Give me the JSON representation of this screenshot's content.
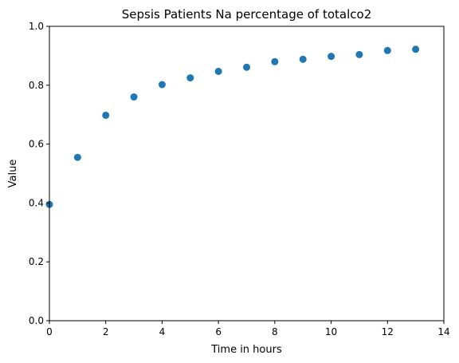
{
  "chart_data": {
    "type": "scatter",
    "title": "Sepsis Patients Na percentage of totalco2",
    "xlabel": "Time in hours",
    "ylabel": "Value",
    "xlim": [
      0,
      14
    ],
    "ylim": [
      0,
      1.0
    ],
    "xticks": [
      0,
      2,
      4,
      6,
      8,
      10,
      12,
      14
    ],
    "yticks": [
      0.0,
      0.2,
      0.4,
      0.6,
      0.8,
      1.0
    ],
    "xtick_labels": [
      "0",
      "2",
      "4",
      "6",
      "8",
      "10",
      "12",
      "14"
    ],
    "ytick_labels": [
      "0.0",
      "0.2",
      "0.4",
      "0.6",
      "0.8",
      "1.0"
    ],
    "grid": false,
    "series": [
      {
        "color": "#1f77b4",
        "x": [
          0,
          1,
          2,
          3,
          4,
          5,
          6,
          7,
          8,
          9,
          10,
          11,
          12,
          13
        ],
        "y": [
          0.395,
          0.555,
          0.698,
          0.76,
          0.802,
          0.825,
          0.847,
          0.861,
          0.88,
          0.888,
          0.898,
          0.904,
          0.918,
          0.922
        ]
      }
    ]
  }
}
